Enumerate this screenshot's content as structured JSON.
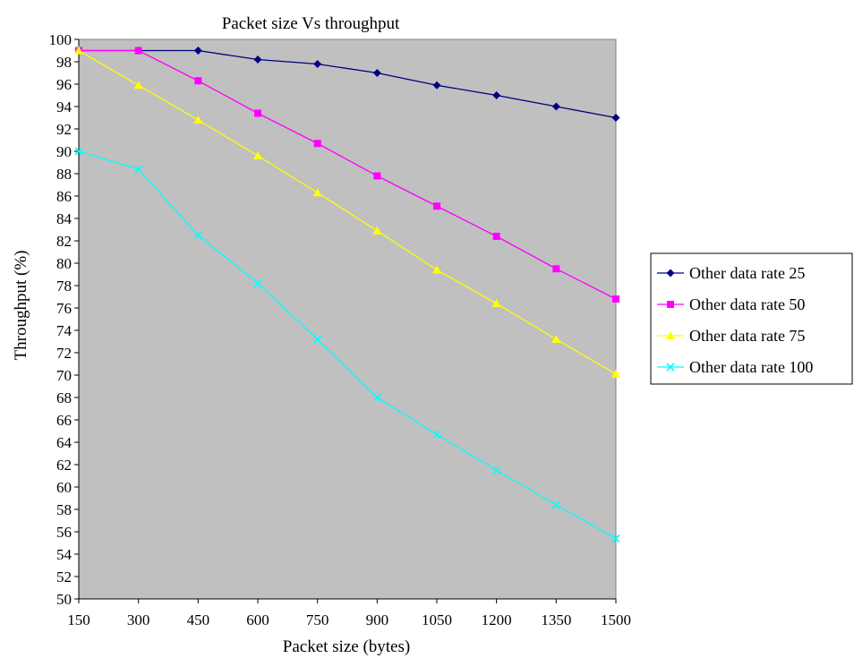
{
  "chart_data": {
    "type": "line",
    "title": "Packet size Vs throughput",
    "xlabel": "Packet size (bytes)",
    "ylabel": "Throughput (%)",
    "categories": [
      "150",
      "300",
      "450",
      "600",
      "750",
      "900",
      "1050",
      "1200",
      "1350",
      "1500"
    ],
    "ylim": [
      50,
      100
    ],
    "ytick_step": 2,
    "grid": false,
    "plot_background": "#c0c0c0",
    "legend_position": "right",
    "series": [
      {
        "name": "Other data rate 25",
        "color": "#000080",
        "marker": "diamond",
        "values": [
          99,
          99,
          99,
          98.2,
          97.8,
          97,
          95.9,
          95,
          94,
          93
        ]
      },
      {
        "name": "Other data rate 50",
        "color": "#ff00ff",
        "marker": "square",
        "values": [
          99,
          99,
          96.3,
          93.4,
          90.7,
          87.8,
          85.1,
          82.4,
          79.5,
          76.8
        ]
      },
      {
        "name": "Other data rate 75",
        "color": "#ffff00",
        "marker": "triangle",
        "values": [
          99,
          95.9,
          92.8,
          89.6,
          86.3,
          82.9,
          79.4,
          76.4,
          73.2,
          70.1
        ]
      },
      {
        "name": "Other data rate 100",
        "color": "#00ffff",
        "marker": "x",
        "values": [
          90,
          88.4,
          82.5,
          78.2,
          73.2,
          68,
          64.7,
          61.5,
          58.4,
          55.4
        ]
      }
    ]
  }
}
